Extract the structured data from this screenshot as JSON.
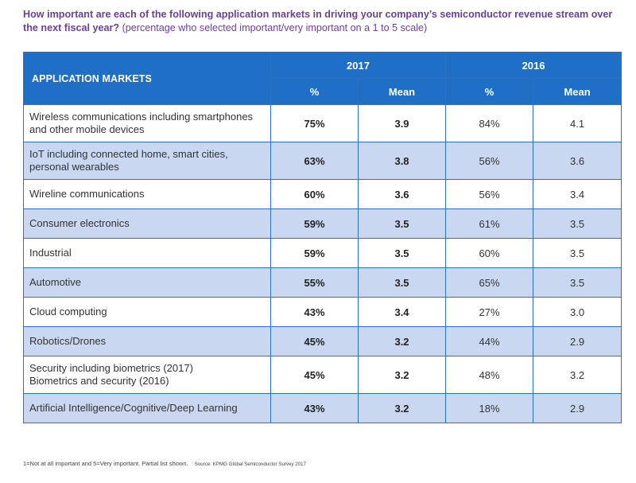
{
  "chart_data": {
    "type": "table",
    "title": "How important are each of the following application markets in driving your company’s semiconductor revenue stream over the next fiscal year?",
    "subtitle": "(percentage who selected important/very important on a 1 to 5 scale)",
    "columns": {
      "label": "APPLICATION MARKETS",
      "groups": [
        "2017",
        "2016"
      ],
      "sub": [
        "%",
        "Mean"
      ]
    },
    "rows": [
      {
        "market": "Wireless communications including smartphones and other mobile devices",
        "pct_2017": "75%",
        "mean_2017": "3.9",
        "pct_2016": "84%",
        "mean_2016": "4.1"
      },
      {
        "market": "IoT including connected home, smart cities, personal wearables",
        "pct_2017": "63%",
        "mean_2017": "3.8",
        "pct_2016": "56%",
        "mean_2016": "3.6"
      },
      {
        "market": "Wireline communications",
        "pct_2017": "60%",
        "mean_2017": "3.6",
        "pct_2016": "56%",
        "mean_2016": "3.4"
      },
      {
        "market": "Consumer electronics",
        "pct_2017": "59%",
        "mean_2017": "3.5",
        "pct_2016": "61%",
        "mean_2016": "3.5"
      },
      {
        "market": "Industrial",
        "pct_2017": "59%",
        "mean_2017": "3.5",
        "pct_2016": "60%",
        "mean_2016": "3.5"
      },
      {
        "market": "Automotive",
        "pct_2017": "55%",
        "mean_2017": "3.5",
        "pct_2016": "65%",
        "mean_2016": "3.5"
      },
      {
        "market": "Cloud computing",
        "pct_2017": "43%",
        "mean_2017": "3.4",
        "pct_2016": "27%",
        "mean_2016": "3.0"
      },
      {
        "market": "Robotics/Drones",
        "pct_2017": "45%",
        "mean_2017": "3.2",
        "pct_2016": "44%",
        "mean_2016": "2.9"
      },
      {
        "market": "Security including biometrics (2017)",
        "market_line2": "Biometrics and security (2016)",
        "pct_2017": "45%",
        "mean_2017": "3.2",
        "pct_2016": "48%",
        "mean_2016": "3.2"
      },
      {
        "market": "Artificial Intelligence/Cognitive/Deep Learning",
        "pct_2017": "43%",
        "mean_2017": "3.2",
        "pct_2016": "18%",
        "mean_2016": "2.9"
      }
    ],
    "footnote": "1=Not at all important and 5=Very important.  Partial list shown.",
    "source": "Source: KPMG Global Semiconductor Survey 2017"
  },
  "colors": {
    "title": "#6b3fa0",
    "header_bg": "#1f6fc6",
    "row_alt": "#c9d8f0",
    "border": "#2a73c4"
  }
}
